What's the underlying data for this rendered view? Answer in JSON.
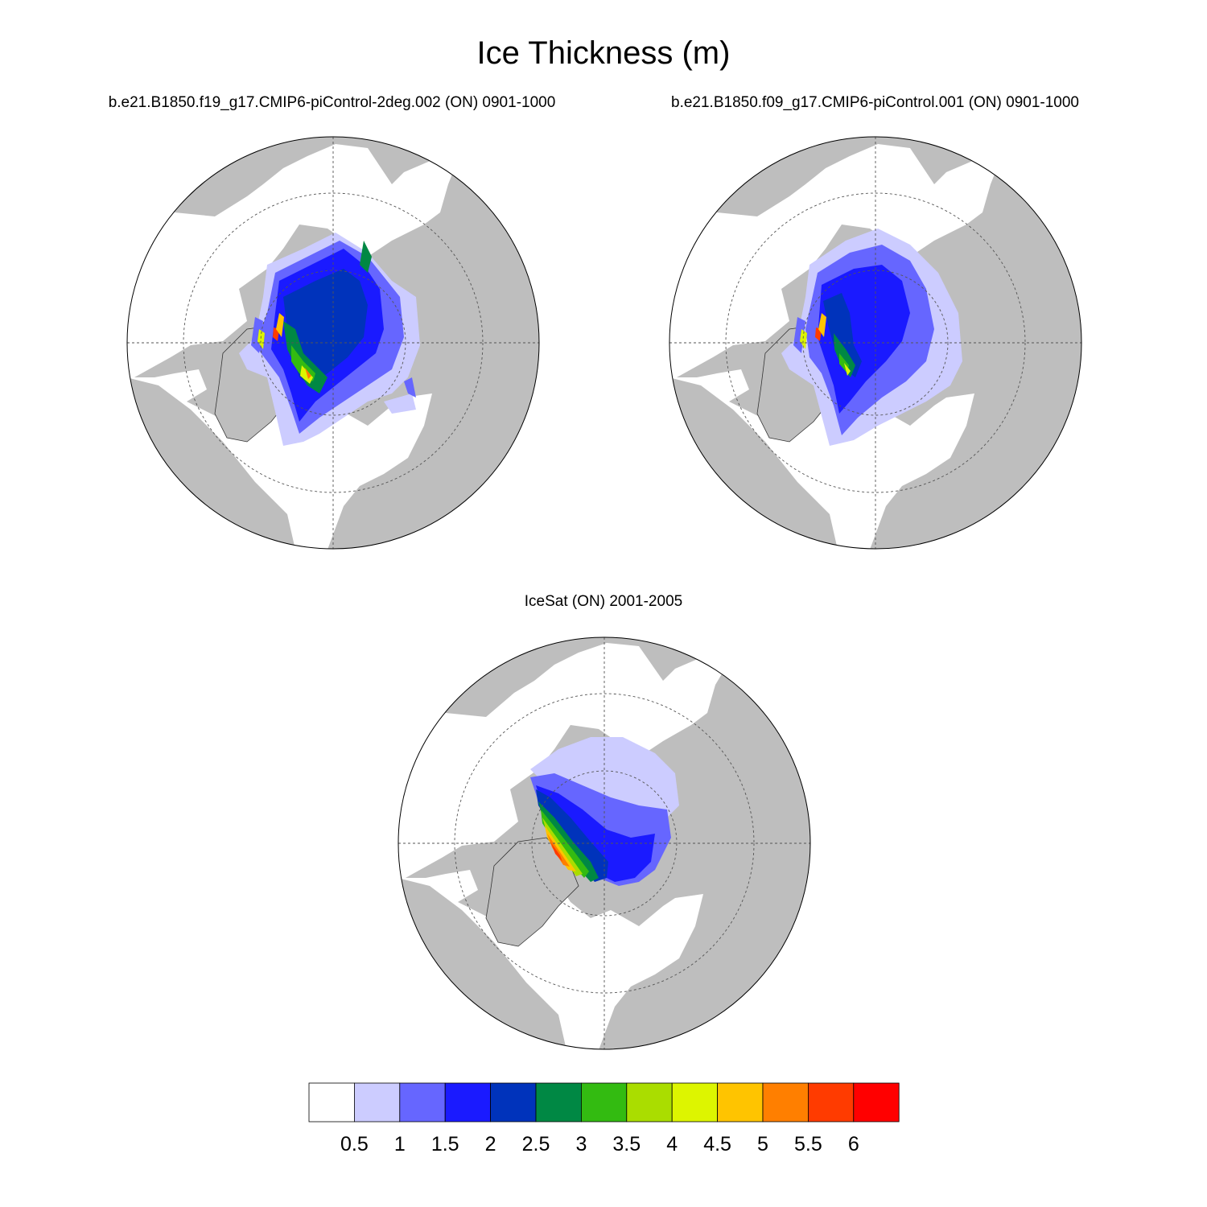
{
  "figure": {
    "title": "Ice Thickness (m)"
  },
  "panels": [
    {
      "id": "left",
      "subtitle": "b.e21.B1850.f19_g17.CMIP6-piControl-2deg.002 (ON) 0901-1000"
    },
    {
      "id": "right",
      "subtitle": "b.e21.B1850.f09_g17.CMIP6-piControl.001 (ON) 0901-1000"
    },
    {
      "id": "bottom",
      "subtitle": "IceSat (ON) 2001-2005"
    }
  ],
  "chart_data": {
    "type": "heatmap",
    "projection": "north-polar-stereographic",
    "variable": "Ice Thickness",
    "units": "m",
    "colorbar": {
      "levels": [
        "0.5",
        "1",
        "1.5",
        "2",
        "2.5",
        "3",
        "3.5",
        "4",
        "4.5",
        "5",
        "5.5",
        "6"
      ],
      "colors": [
        "#ffffff",
        "#ccccff",
        "#6666ff",
        "#1a1aff",
        "#0033bb",
        "#008844",
        "#33bb11",
        "#aadd00",
        "#ddf500",
        "#ffc400",
        "#ff7f00",
        "#ff3b00",
        "#ff0000"
      ]
    },
    "land_color": "#bebebe",
    "ocean_color": "#ffffff"
  }
}
